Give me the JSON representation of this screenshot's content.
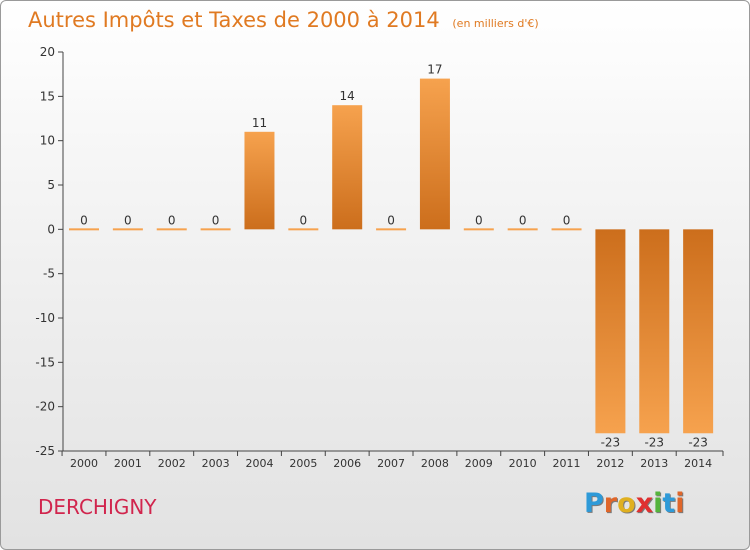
{
  "title": "Autres Impôts et Taxes de 2000 à 2014",
  "title_unit": "(en milliers d'€)",
  "commune": "DERCHIGNY",
  "logo": {
    "letters": [
      "P",
      "r",
      "o",
      "x",
      "i",
      "t",
      "i"
    ],
    "colors": [
      "#2e9ad8",
      "#e0662a",
      "#e0b020",
      "#e03030",
      "#55b43c",
      "#2e9ad8",
      "#e0662a"
    ]
  },
  "colors": {
    "bar_light": "#f6a24e",
    "bar_dark": "#cc6e1c",
    "axis": "#444444",
    "label": "#333333"
  },
  "chart_data": {
    "type": "bar",
    "title": "Autres Impôts et Taxes de 2000 à 2014",
    "subtitle": "(en milliers d'€)",
    "categories": [
      "2000",
      "2001",
      "2002",
      "2003",
      "2004",
      "2005",
      "2006",
      "2007",
      "2008",
      "2009",
      "2010",
      "2011",
      "2012",
      "2013",
      "2014"
    ],
    "values": [
      0,
      0,
      0,
      0,
      11,
      0,
      14,
      0,
      17,
      0,
      0,
      0,
      -23,
      -23,
      -23
    ],
    "data_labels": [
      "0",
      "0",
      "0",
      "0",
      "11",
      "0",
      "14",
      "0",
      "17",
      "0",
      "0",
      "0",
      "-23",
      "-23",
      "-23"
    ],
    "yticks": [
      20,
      15,
      10,
      5,
      0,
      -5,
      -10,
      -15,
      -20,
      -25
    ],
    "ylim": [
      -25,
      20
    ],
    "xlabel": "",
    "ylabel": "",
    "grid": false,
    "legend": "none"
  }
}
